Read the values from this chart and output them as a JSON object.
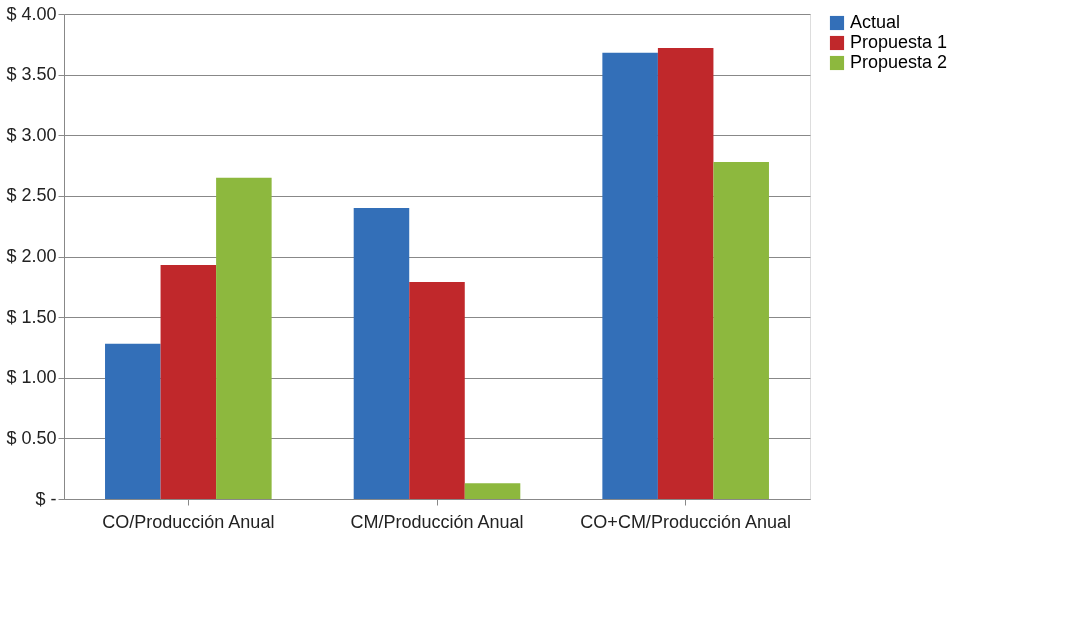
{
  "chart_data": {
    "type": "bar",
    "categories": [
      "CO/Producción Anual",
      "CM/Producción Anual",
      "CO+CM/Producción Anual"
    ],
    "series": [
      {
        "name": "Actual",
        "color": "#336fb8",
        "values": [
          1.28,
          2.4,
          3.68
        ]
      },
      {
        "name": "Propuesta 1",
        "color": "#c0282b",
        "values": [
          1.93,
          1.79,
          3.72
        ]
      },
      {
        "name": "Propuesta 2",
        "color": "#8db83e",
        "values": [
          2.65,
          0.13,
          2.78
        ]
      }
    ],
    "ylim": [
      0,
      4
    ],
    "yticks": [
      {
        "value": 0,
        "label": "$ -"
      },
      {
        "value": 0.5,
        "label": "$ 0.50"
      },
      {
        "value": 1,
        "label": "$ 1.00"
      },
      {
        "value": 1.5,
        "label": "$ 1.50"
      },
      {
        "value": 2,
        "label": "$ 2.00"
      },
      {
        "value": 2.5,
        "label": "$ 2.50"
      },
      {
        "value": 3,
        "label": "$ 3.00"
      },
      {
        "value": 3.5,
        "label": "$ 3.50"
      },
      {
        "value": 4,
        "label": "$ 4.00"
      }
    ],
    "grid": "y",
    "legend": "right"
  }
}
